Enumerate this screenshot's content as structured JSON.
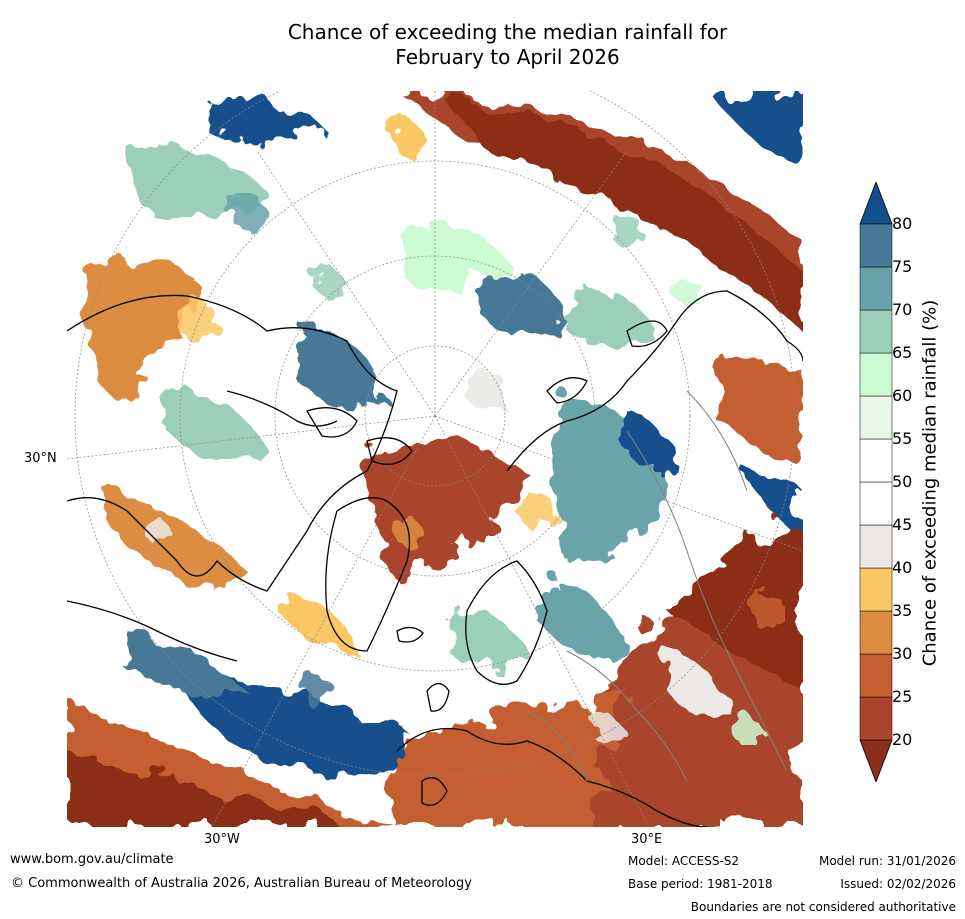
{
  "title": {
    "line1": "Chance of exceeding the median rainfall for",
    "line2": "February to April 2026"
  },
  "map": {
    "projection": "north-polar-stereographic",
    "labels": {
      "lat_30n": "30°N",
      "lon_30w": "30°W",
      "lon_30e": "30°E"
    },
    "colors": {
      "background": "#ffffff",
      "coast": "#000000",
      "borders": "#808080"
    }
  },
  "colorbar": {
    "label": "Chance of exceeding median rainfall (%)",
    "ticks": [
      "20",
      "25",
      "30",
      "35",
      "40",
      "45",
      "50",
      "55",
      "60",
      "65",
      "70",
      "75",
      "80"
    ],
    "bins": [
      {
        "range": "<20",
        "color": "#8c2d19"
      },
      {
        "range": "20-25",
        "color": "#a8452a"
      },
      {
        "range": "25-30",
        "color": "#c45f30"
      },
      {
        "range": "30-35",
        "color": "#dc8d42"
      },
      {
        "range": "35-40",
        "color": "#fbc765"
      },
      {
        "range": "40-45",
        "color": "#ebe8e5"
      },
      {
        "range": "45-50",
        "color": "#ffffff"
      },
      {
        "range": "50-55",
        "color": "#ffffff"
      },
      {
        "range": "55-60",
        "color": "#eaf6ea"
      },
      {
        "range": "60-65",
        "color": "#cdfbd1"
      },
      {
        "range": "65-70",
        "color": "#9bcfb9"
      },
      {
        "range": "70-75",
        "color": "#67a4aa"
      },
      {
        "range": "75-80",
        "color": "#467996"
      },
      {
        "range": ">80",
        "color": "#124f8c"
      }
    ]
  },
  "footer": {
    "website": "www.bom.gov.au/climate",
    "copyright": "© Commonwealth of Australia 2026, Australian Bureau of Meteorology",
    "model": "Model: ACCESS-S2",
    "base_period": "Base period: 1981-2018",
    "model_run": "Model run: 31/01/2026",
    "issued": "Issued: 02/02/2026",
    "disclaimer": "Boundaries are not considered authoritative"
  }
}
